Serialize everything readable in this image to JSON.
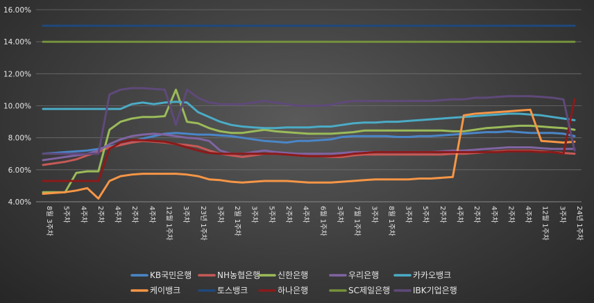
{
  "chart_data": {
    "type": "line",
    "y_ticks": [
      "4.00%",
      "6.00%",
      "8.00%",
      "10.00%",
      "12.00%",
      "14.00%",
      "16.00%"
    ],
    "ylim": [
      4,
      16
    ],
    "grid": true,
    "legend_position": "bottom",
    "x_tick_labels": [
      "8월 3주차",
      "5주차",
      "4주차",
      "2주차",
      "4주차",
      "2주차",
      "4주차",
      "12월 1주차",
      "3주차",
      "23년 1주차",
      "3주차",
      "2월 1주차",
      "3주차",
      "5주차",
      "2주차",
      "4주차",
      "6월 1주차",
      "3주차",
      "7월 1주차",
      "3주차",
      "8월 1주차",
      "3주차",
      "5주차",
      "2주차",
      "4주차",
      "2주차",
      "4주차",
      "2주차",
      "4주차",
      "12월 1주차",
      "3주차",
      "24년 1주차"
    ],
    "series": [
      {
        "name": "KB국민은행",
        "color": "#4a86c8",
        "values": [
          7.0,
          7.05,
          7.1,
          7.15,
          7.2,
          7.3,
          7.45,
          7.6,
          7.75,
          7.95,
          8.1,
          8.25,
          8.3,
          8.25,
          8.2,
          8.2,
          8.15,
          8.1,
          8.0,
          7.9,
          7.8,
          7.75,
          7.7,
          7.8,
          7.8,
          7.85,
          7.9,
          8.05,
          8.1,
          8.1,
          8.1,
          8.1,
          8.05,
          8.05,
          8.1,
          8.1,
          8.15,
          8.2,
          8.25,
          8.3,
          8.35,
          8.35,
          8.4,
          8.35,
          8.3,
          8.3,
          8.3,
          8.25,
          8.1
        ]
      },
      {
        "name": "NH농협은행",
        "color": "#c65a57",
        "values": [
          6.3,
          6.4,
          6.5,
          6.65,
          6.9,
          7.1,
          7.4,
          7.55,
          7.7,
          7.8,
          7.75,
          7.7,
          7.6,
          7.55,
          7.45,
          7.2,
          7.0,
          6.9,
          6.8,
          6.9,
          7.0,
          7.0,
          6.95,
          6.9,
          6.85,
          6.85,
          6.8,
          6.8,
          6.9,
          6.95,
          6.95,
          6.95,
          6.95,
          6.95,
          6.95,
          6.95,
          6.95,
          7.0,
          7.0,
          7.05,
          7.1,
          7.15,
          7.2,
          7.2,
          7.2,
          7.15,
          7.1,
          7.05,
          7.0
        ]
      },
      {
        "name": "신한은행",
        "color": "#9bbb59",
        "values": [
          4.6,
          4.6,
          4.6,
          5.8,
          5.9,
          5.9,
          8.5,
          9.0,
          9.2,
          9.3,
          9.3,
          9.35,
          11.0,
          9.0,
          8.9,
          8.6,
          8.4,
          8.3,
          8.3,
          8.4,
          8.5,
          8.4,
          8.35,
          8.3,
          8.25,
          8.25,
          8.25,
          8.3,
          8.35,
          8.45,
          8.45,
          8.45,
          8.45,
          8.45,
          8.45,
          8.45,
          8.45,
          8.4,
          8.4,
          8.5,
          8.6,
          8.65,
          8.7,
          8.75,
          8.75,
          8.7,
          8.65,
          8.6,
          8.5
        ]
      },
      {
        "name": "우리은행",
        "color": "#8064a2",
        "values": [
          6.6,
          6.7,
          6.8,
          6.9,
          7.0,
          7.2,
          7.6,
          7.9,
          8.1,
          8.2,
          8.25,
          8.2,
          8.1,
          8.0,
          7.95,
          7.8,
          7.2,
          7.0,
          7.0,
          7.1,
          7.2,
          7.1,
          7.05,
          7.0,
          7.0,
          7.0,
          7.0,
          7.05,
          7.1,
          7.1,
          7.1,
          7.1,
          7.1,
          7.1,
          7.1,
          7.1,
          7.15,
          7.2,
          7.2,
          7.25,
          7.3,
          7.35,
          7.4,
          7.4,
          7.4,
          7.35,
          7.3,
          7.3,
          7.3
        ]
      },
      {
        "name": "카카오뱅크",
        "color": "#4bacc6",
        "values": [
          9.8,
          9.8,
          9.8,
          9.8,
          9.8,
          9.8,
          9.8,
          9.8,
          10.1,
          10.2,
          10.1,
          10.2,
          10.25,
          10.2,
          9.6,
          9.3,
          9.0,
          8.8,
          8.7,
          8.65,
          8.6,
          8.6,
          8.65,
          8.65,
          8.65,
          8.7,
          8.7,
          8.8,
          8.9,
          8.95,
          8.95,
          9.0,
          9.0,
          9.05,
          9.1,
          9.15,
          9.2,
          9.25,
          9.3,
          9.35,
          9.4,
          9.45,
          9.5,
          9.5,
          9.45,
          9.4,
          9.3,
          9.2,
          9.1
        ]
      },
      {
        "name": "케이뱅크",
        "color": "#f79646",
        "values": [
          4.5,
          4.55,
          4.6,
          4.7,
          4.85,
          4.2,
          5.3,
          5.6,
          5.7,
          5.75,
          5.75,
          5.75,
          5.75,
          5.7,
          5.6,
          5.4,
          5.35,
          5.25,
          5.2,
          5.25,
          5.3,
          5.3,
          5.3,
          5.25,
          5.2,
          5.2,
          5.2,
          5.25,
          5.3,
          5.35,
          5.4,
          5.4,
          5.4,
          5.4,
          5.45,
          5.45,
          5.5,
          5.55,
          9.4,
          9.5,
          9.55,
          9.6,
          9.65,
          9.7,
          9.75,
          7.8,
          7.75,
          7.7,
          7.75
        ]
      },
      {
        "name": "토스뱅크",
        "color": "#1f497d",
        "values": [
          15.0,
          15.0,
          15.0,
          15.0,
          15.0,
          15.0,
          15.0,
          15.0,
          15.0,
          15.0,
          15.0,
          15.0,
          15.0,
          15.0,
          15.0,
          15.0,
          15.0,
          15.0,
          15.0,
          15.0,
          15.0,
          15.0,
          15.0,
          15.0,
          15.0,
          15.0,
          15.0,
          15.0,
          15.0,
          15.0,
          15.0,
          15.0,
          15.0,
          15.0,
          15.0,
          15.0,
          15.0,
          15.0,
          15.0,
          15.0,
          15.0,
          15.0,
          15.0,
          15.0,
          15.0,
          15.0,
          15.0,
          15.0,
          15.0
        ]
      },
      {
        "name": "하나은행",
        "color": "#8b1a1a",
        "values": [
          5.3,
          5.3,
          5.3,
          5.3,
          5.3,
          5.3,
          7.3,
          7.7,
          7.85,
          7.85,
          7.8,
          7.75,
          7.6,
          7.4,
          7.2,
          7.05,
          7.0,
          7.0,
          7.0,
          7.0,
          7.0,
          7.0,
          6.95,
          6.9,
          6.85,
          6.85,
          6.85,
          6.9,
          7.0,
          7.05,
          7.1,
          7.1,
          7.1,
          7.1,
          7.1,
          7.1,
          7.1,
          7.1,
          7.1,
          7.1,
          7.1,
          7.1,
          7.15,
          7.15,
          7.15,
          7.1,
          7.1,
          7.0,
          10.4
        ]
      },
      {
        "name": "SC제일은행",
        "color": "#76923c",
        "values": [
          14.0,
          14.0,
          14.0,
          14.0,
          14.0,
          14.0,
          14.0,
          14.0,
          14.0,
          14.0,
          14.0,
          14.0,
          14.0,
          14.0,
          14.0,
          14.0,
          14.0,
          14.0,
          14.0,
          14.0,
          14.0,
          14.0,
          14.0,
          14.0,
          14.0,
          14.0,
          14.0,
          14.0,
          14.0,
          14.0,
          14.0,
          14.0,
          14.0,
          14.0,
          14.0,
          14.0,
          14.0,
          14.0,
          14.0,
          14.0,
          14.0,
          14.0,
          14.0,
          14.0,
          14.0,
          14.0,
          14.0,
          14.0,
          14.0
        ]
      },
      {
        "name": "IBK기업은행",
        "color": "#5f497a",
        "values": [
          7.0,
          7.0,
          7.0,
          7.0,
          7.0,
          7.0,
          10.7,
          11.0,
          11.1,
          11.1,
          11.05,
          11.0,
          8.8,
          11.0,
          10.5,
          10.2,
          10.1,
          10.1,
          10.1,
          10.2,
          10.3,
          10.2,
          10.1,
          10.0,
          10.0,
          10.0,
          10.05,
          10.2,
          10.3,
          10.3,
          10.3,
          10.3,
          10.3,
          10.3,
          10.3,
          10.3,
          10.35,
          10.4,
          10.4,
          10.5,
          10.5,
          10.55,
          10.6,
          10.6,
          10.6,
          10.55,
          10.5,
          10.4,
          7.2
        ]
      }
    ]
  }
}
